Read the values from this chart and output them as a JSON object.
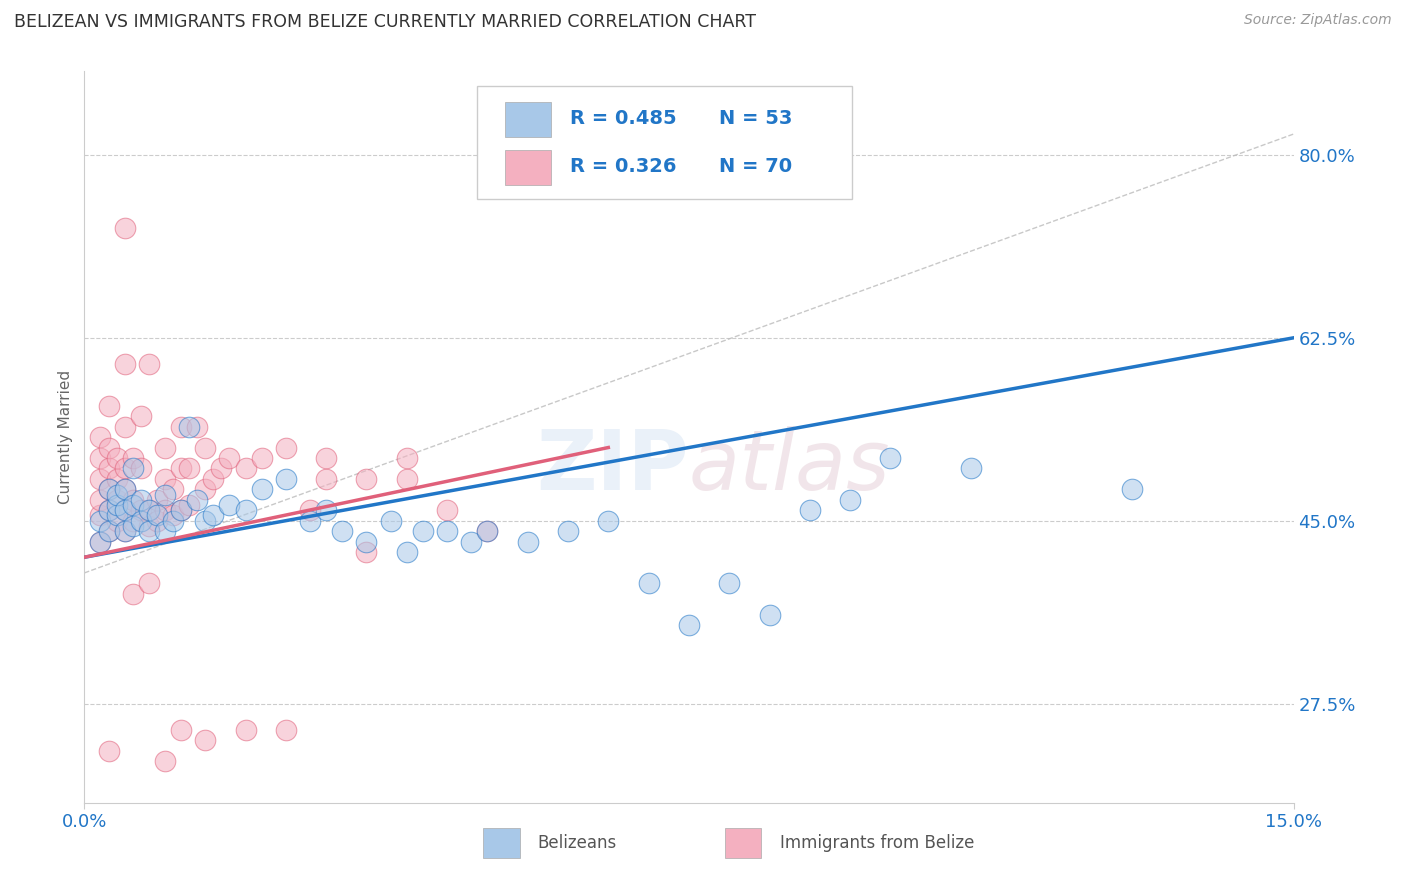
{
  "title": "BELIZEAN VS IMMIGRANTS FROM BELIZE CURRENTLY MARRIED CORRELATION CHART",
  "source_text": "Source: ZipAtlas.com",
  "ylabel": "Currently Married",
  "xlim": [
    0.0,
    0.15
  ],
  "ylim": [
    0.18,
    0.88
  ],
  "xtick_labels": [
    "0.0%",
    "15.0%"
  ],
  "xtick_positions": [
    0.0,
    0.15
  ],
  "ytick_labels": [
    "27.5%",
    "45.0%",
    "62.5%",
    "80.0%"
  ],
  "ytick_positions": [
    0.275,
    0.45,
    0.625,
    0.8
  ],
  "belizeans_color": "#a8c8e8",
  "immigrants_color": "#f4b0c0",
  "belizean_line_color": "#2176c7",
  "immigrant_line_color": "#e0607a",
  "R_belizean": "0.485",
  "N_belizean": "53",
  "R_immigrant": "0.326",
  "N_immigrant": "70",
  "legend_text_color": "#2176c7",
  "belizean_scatter": [
    [
      0.002,
      0.43
    ],
    [
      0.002,
      0.45
    ],
    [
      0.003,
      0.46
    ],
    [
      0.003,
      0.44
    ],
    [
      0.003,
      0.48
    ],
    [
      0.004,
      0.455
    ],
    [
      0.004,
      0.465
    ],
    [
      0.004,
      0.475
    ],
    [
      0.005,
      0.44
    ],
    [
      0.005,
      0.46
    ],
    [
      0.005,
      0.48
    ],
    [
      0.006,
      0.445
    ],
    [
      0.006,
      0.465
    ],
    [
      0.006,
      0.5
    ],
    [
      0.007,
      0.45
    ],
    [
      0.007,
      0.47
    ],
    [
      0.008,
      0.44
    ],
    [
      0.008,
      0.46
    ],
    [
      0.009,
      0.455
    ],
    [
      0.01,
      0.475
    ],
    [
      0.01,
      0.44
    ],
    [
      0.011,
      0.45
    ],
    [
      0.012,
      0.46
    ],
    [
      0.013,
      0.54
    ],
    [
      0.014,
      0.47
    ],
    [
      0.015,
      0.45
    ],
    [
      0.016,
      0.455
    ],
    [
      0.018,
      0.465
    ],
    [
      0.02,
      0.46
    ],
    [
      0.022,
      0.48
    ],
    [
      0.025,
      0.49
    ],
    [
      0.028,
      0.45
    ],
    [
      0.03,
      0.46
    ],
    [
      0.032,
      0.44
    ],
    [
      0.035,
      0.43
    ],
    [
      0.038,
      0.45
    ],
    [
      0.04,
      0.42
    ],
    [
      0.042,
      0.44
    ],
    [
      0.045,
      0.44
    ],
    [
      0.048,
      0.43
    ],
    [
      0.05,
      0.44
    ],
    [
      0.055,
      0.43
    ],
    [
      0.06,
      0.44
    ],
    [
      0.065,
      0.45
    ],
    [
      0.07,
      0.39
    ],
    [
      0.075,
      0.35
    ],
    [
      0.08,
      0.39
    ],
    [
      0.085,
      0.36
    ],
    [
      0.09,
      0.46
    ],
    [
      0.095,
      0.47
    ],
    [
      0.1,
      0.51
    ],
    [
      0.11,
      0.5
    ],
    [
      0.13,
      0.48
    ]
  ],
  "immigrant_scatter": [
    [
      0.002,
      0.43
    ],
    [
      0.002,
      0.455
    ],
    [
      0.002,
      0.47
    ],
    [
      0.002,
      0.49
    ],
    [
      0.002,
      0.51
    ],
    [
      0.002,
      0.53
    ],
    [
      0.003,
      0.44
    ],
    [
      0.003,
      0.46
    ],
    [
      0.003,
      0.48
    ],
    [
      0.003,
      0.5
    ],
    [
      0.003,
      0.52
    ],
    [
      0.003,
      0.56
    ],
    [
      0.004,
      0.45
    ],
    [
      0.004,
      0.47
    ],
    [
      0.004,
      0.49
    ],
    [
      0.004,
      0.51
    ],
    [
      0.005,
      0.44
    ],
    [
      0.005,
      0.46
    ],
    [
      0.005,
      0.48
    ],
    [
      0.005,
      0.5
    ],
    [
      0.005,
      0.54
    ],
    [
      0.005,
      0.6
    ],
    [
      0.006,
      0.45
    ],
    [
      0.006,
      0.47
    ],
    [
      0.006,
      0.51
    ],
    [
      0.007,
      0.46
    ],
    [
      0.007,
      0.5
    ],
    [
      0.007,
      0.55
    ],
    [
      0.008,
      0.445
    ],
    [
      0.008,
      0.46
    ],
    [
      0.008,
      0.6
    ],
    [
      0.009,
      0.45
    ],
    [
      0.009,
      0.47
    ],
    [
      0.01,
      0.46
    ],
    [
      0.01,
      0.49
    ],
    [
      0.01,
      0.52
    ],
    [
      0.011,
      0.455
    ],
    [
      0.011,
      0.48
    ],
    [
      0.012,
      0.46
    ],
    [
      0.012,
      0.5
    ],
    [
      0.012,
      0.54
    ],
    [
      0.013,
      0.465
    ],
    [
      0.013,
      0.5
    ],
    [
      0.014,
      0.54
    ],
    [
      0.015,
      0.48
    ],
    [
      0.015,
      0.52
    ],
    [
      0.016,
      0.49
    ],
    [
      0.017,
      0.5
    ],
    [
      0.018,
      0.51
    ],
    [
      0.02,
      0.5
    ],
    [
      0.022,
      0.51
    ],
    [
      0.025,
      0.52
    ],
    [
      0.028,
      0.46
    ],
    [
      0.03,
      0.49
    ],
    [
      0.035,
      0.49
    ],
    [
      0.04,
      0.49
    ],
    [
      0.01,
      0.22
    ],
    [
      0.015,
      0.24
    ],
    [
      0.02,
      0.25
    ],
    [
      0.025,
      0.25
    ],
    [
      0.005,
      0.73
    ],
    [
      0.03,
      0.51
    ],
    [
      0.04,
      0.51
    ],
    [
      0.045,
      0.46
    ],
    [
      0.05,
      0.44
    ],
    [
      0.035,
      0.42
    ],
    [
      0.012,
      0.25
    ],
    [
      0.006,
      0.38
    ],
    [
      0.008,
      0.39
    ],
    [
      0.003,
      0.23
    ]
  ],
  "background_color": "#ffffff",
  "grid_color": "#cccccc",
  "axis_label_color": "#2176c7",
  "title_color": "#333333"
}
